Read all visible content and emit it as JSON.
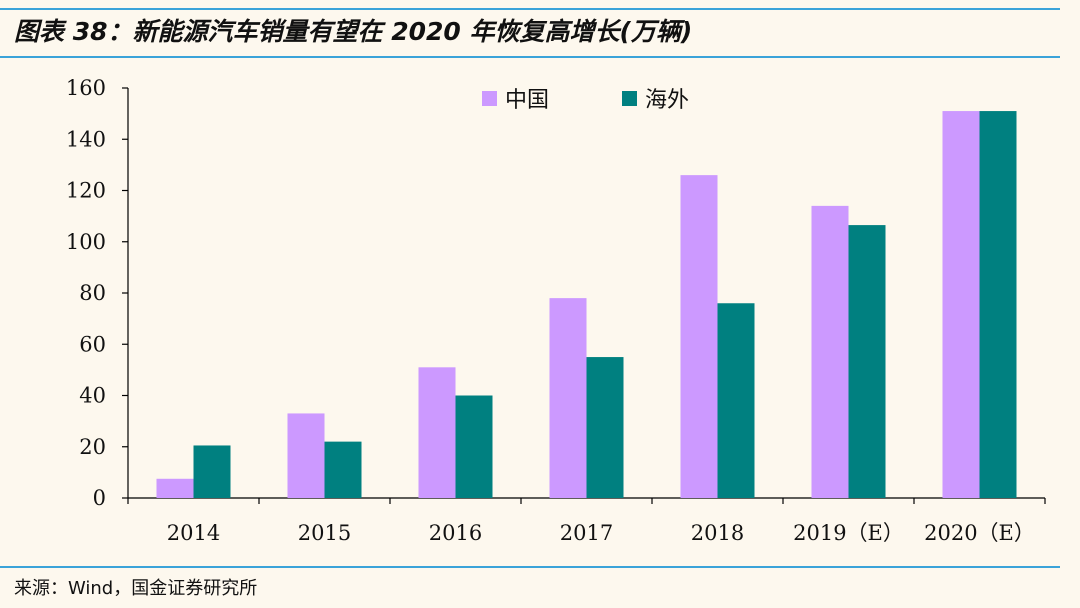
{
  "header": {
    "title": "图表 38：新能源汽车销量有望在 2020 年恢复高增长(万辆)"
  },
  "footer": {
    "source": "来源：Wind，国金证券研究所"
  },
  "colors": {
    "china": "#cc99ff",
    "overseas": "#008080",
    "rule": "#3aa3d9",
    "background": "#fdf8ee"
  },
  "chart_data": {
    "type": "bar",
    "title": "",
    "categories": [
      "2014",
      "2015",
      "2016",
      "2017",
      "2018",
      "2019（E）",
      "2020（E）"
    ],
    "series": [
      {
        "name": "中国",
        "values": [
          7.5,
          33,
          51,
          78,
          126,
          114,
          151
        ]
      },
      {
        "name": "海外",
        "values": [
          20.5,
          22,
          40,
          55,
          76,
          106.5,
          151
        ]
      }
    ],
    "ylim": [
      0,
      160
    ],
    "yticks": [
      0,
      20,
      40,
      60,
      80,
      100,
      120,
      140,
      160
    ],
    "xlabel": "",
    "ylabel": "",
    "legend": "top-center",
    "grid": false
  }
}
